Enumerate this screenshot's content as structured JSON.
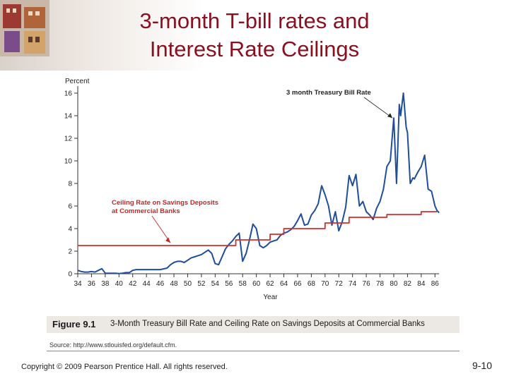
{
  "slide": {
    "title_lines": [
      "3-month T-bill rates and",
      "Interest Rate Ceilings"
    ],
    "figure_number": "Figure 9.1",
    "figure_title": "3-Month Treasury Bill Rate and Ceiling Rate on Savings Deposits at Commercial Banks",
    "source": "Source: http://www.stlouisfed.org/default.cfm.",
    "copyright": "Copyright © 2009 Pearson Prentice Hall. All rights reserved.",
    "page_number": "9-10"
  },
  "chart_data": {
    "type": "line",
    "ylabel": "Percent",
    "xlabel": "Year",
    "ylim": [
      0,
      16
    ],
    "xlim": [
      1934,
      1987
    ],
    "y_ticks": [
      "0",
      "2",
      "4",
      "6",
      "8",
      "10",
      "12",
      "14",
      "16"
    ],
    "x_ticks": [
      "34",
      "36",
      "38",
      "40",
      "42",
      "44",
      "46",
      "48",
      "50",
      "52",
      "54",
      "56",
      "58",
      "60",
      "62",
      "64",
      "66",
      "68",
      "70",
      "72",
      "74",
      "76",
      "78",
      "80",
      "82",
      "84",
      "86"
    ],
    "grid": false,
    "annotations": [
      {
        "text": "3 month Treasury Bill Rate",
        "points_to_x": 1979.8,
        "points_to_y": 13.8
      },
      {
        "text": "Ceiling Rate on Savings Deposits at Commercial Banks",
        "points_to_x": 1947.5,
        "points_to_y": 2.55
      }
    ],
    "series": [
      {
        "name": "3 month Treasury Bill Rate",
        "color": "#1f4e9c",
        "points": [
          [
            1934,
            0.3
          ],
          [
            1934.5,
            0.2
          ],
          [
            1935,
            0.15
          ],
          [
            1935.5,
            0.15
          ],
          [
            1936,
            0.2
          ],
          [
            1936.5,
            0.15
          ],
          [
            1937,
            0.3
          ],
          [
            1937.5,
            0.45
          ],
          [
            1938,
            0.05
          ],
          [
            1938.5,
            0.05
          ],
          [
            1939,
            0.05
          ],
          [
            1939.5,
            0.05
          ],
          [
            1940,
            0.02
          ],
          [
            1940.5,
            0.05
          ],
          [
            1941,
            0.1
          ],
          [
            1941.5,
            0.1
          ],
          [
            1942,
            0.3
          ],
          [
            1942.5,
            0.37
          ],
          [
            1943,
            0.37
          ],
          [
            1944,
            0.37
          ],
          [
            1945,
            0.37
          ],
          [
            1946,
            0.37
          ],
          [
            1947,
            0.5
          ],
          [
            1947.5,
            0.8
          ],
          [
            1948,
            1.0
          ],
          [
            1948.5,
            1.1
          ],
          [
            1949,
            1.1
          ],
          [
            1949.5,
            1.0
          ],
          [
            1950,
            1.2
          ],
          [
            1950.5,
            1.4
          ],
          [
            1951,
            1.5
          ],
          [
            1951.5,
            1.6
          ],
          [
            1952,
            1.7
          ],
          [
            1952.5,
            1.9
          ],
          [
            1953,
            2.1
          ],
          [
            1953.5,
            1.8
          ],
          [
            1954,
            0.9
          ],
          [
            1954.5,
            0.8
          ],
          [
            1955,
            1.5
          ],
          [
            1955.5,
            2.2
          ],
          [
            1956,
            2.6
          ],
          [
            1956.5,
            2.9
          ],
          [
            1957,
            3.3
          ],
          [
            1957.5,
            3.6
          ],
          [
            1958,
            1.1
          ],
          [
            1958.5,
            1.8
          ],
          [
            1959,
            3.0
          ],
          [
            1959.5,
            4.4
          ],
          [
            1960,
            4.0
          ],
          [
            1960.5,
            2.5
          ],
          [
            1961,
            2.3
          ],
          [
            1961.5,
            2.5
          ],
          [
            1962,
            2.8
          ],
          [
            1962.5,
            2.9
          ],
          [
            1963,
            3.0
          ],
          [
            1963.5,
            3.4
          ],
          [
            1964,
            3.6
          ],
          [
            1964.5,
            3.7
          ],
          [
            1965,
            3.9
          ],
          [
            1965.5,
            4.2
          ],
          [
            1966,
            4.7
          ],
          [
            1966.5,
            5.3
          ],
          [
            1967,
            4.3
          ],
          [
            1967.5,
            4.4
          ],
          [
            1968,
            5.2
          ],
          [
            1968.5,
            5.6
          ],
          [
            1969,
            6.2
          ],
          [
            1969.5,
            7.8
          ],
          [
            1970,
            7.0
          ],
          [
            1970.5,
            6.0
          ],
          [
            1971,
            4.3
          ],
          [
            1971.5,
            5.5
          ],
          [
            1972,
            3.8
          ],
          [
            1972.5,
            4.6
          ],
          [
            1973,
            5.9
          ],
          [
            1973.5,
            8.7
          ],
          [
            1974,
            7.8
          ],
          [
            1974.5,
            8.8
          ],
          [
            1975,
            6.0
          ],
          [
            1975.5,
            6.4
          ],
          [
            1976,
            5.5
          ],
          [
            1976.5,
            5.2
          ],
          [
            1977,
            4.8
          ],
          [
            1977.5,
            5.8
          ],
          [
            1978,
            6.4
          ],
          [
            1978.5,
            7.5
          ],
          [
            1979,
            9.5
          ],
          [
            1979.5,
            10.0
          ],
          [
            1980,
            13.8
          ],
          [
            1980.4,
            8.0
          ],
          [
            1980.8,
            15.0
          ],
          [
            1981,
            14.0
          ],
          [
            1981.4,
            16.0
          ],
          [
            1981.8,
            13.0
          ],
          [
            1982,
            12.5
          ],
          [
            1982.4,
            8.0
          ],
          [
            1982.8,
            8.5
          ],
          [
            1983,
            8.4
          ],
          [
            1983.5,
            9.0
          ],
          [
            1984,
            9.5
          ],
          [
            1984.5,
            10.5
          ],
          [
            1985,
            7.5
          ],
          [
            1985.5,
            7.3
          ],
          [
            1986,
            6.0
          ],
          [
            1986.3,
            5.6
          ],
          [
            1986.6,
            5.4
          ]
        ]
      },
      {
        "name": "Ceiling Rate on Savings Deposits at Commercial Banks",
        "color": "#d32f2f",
        "points": [
          [
            1934,
            2.5
          ],
          [
            1957,
            2.5
          ],
          [
            1957,
            3.0
          ],
          [
            1962,
            3.0
          ],
          [
            1962,
            3.5
          ],
          [
            1964,
            3.5
          ],
          [
            1964,
            4.0
          ],
          [
            1970,
            4.0
          ],
          [
            1970,
            4.5
          ],
          [
            1973.5,
            4.5
          ],
          [
            1973.5,
            5.0
          ],
          [
            1979,
            5.0
          ],
          [
            1979,
            5.25
          ],
          [
            1984,
            5.25
          ],
          [
            1984,
            5.5
          ],
          [
            1986.3,
            5.5
          ]
        ]
      }
    ]
  }
}
